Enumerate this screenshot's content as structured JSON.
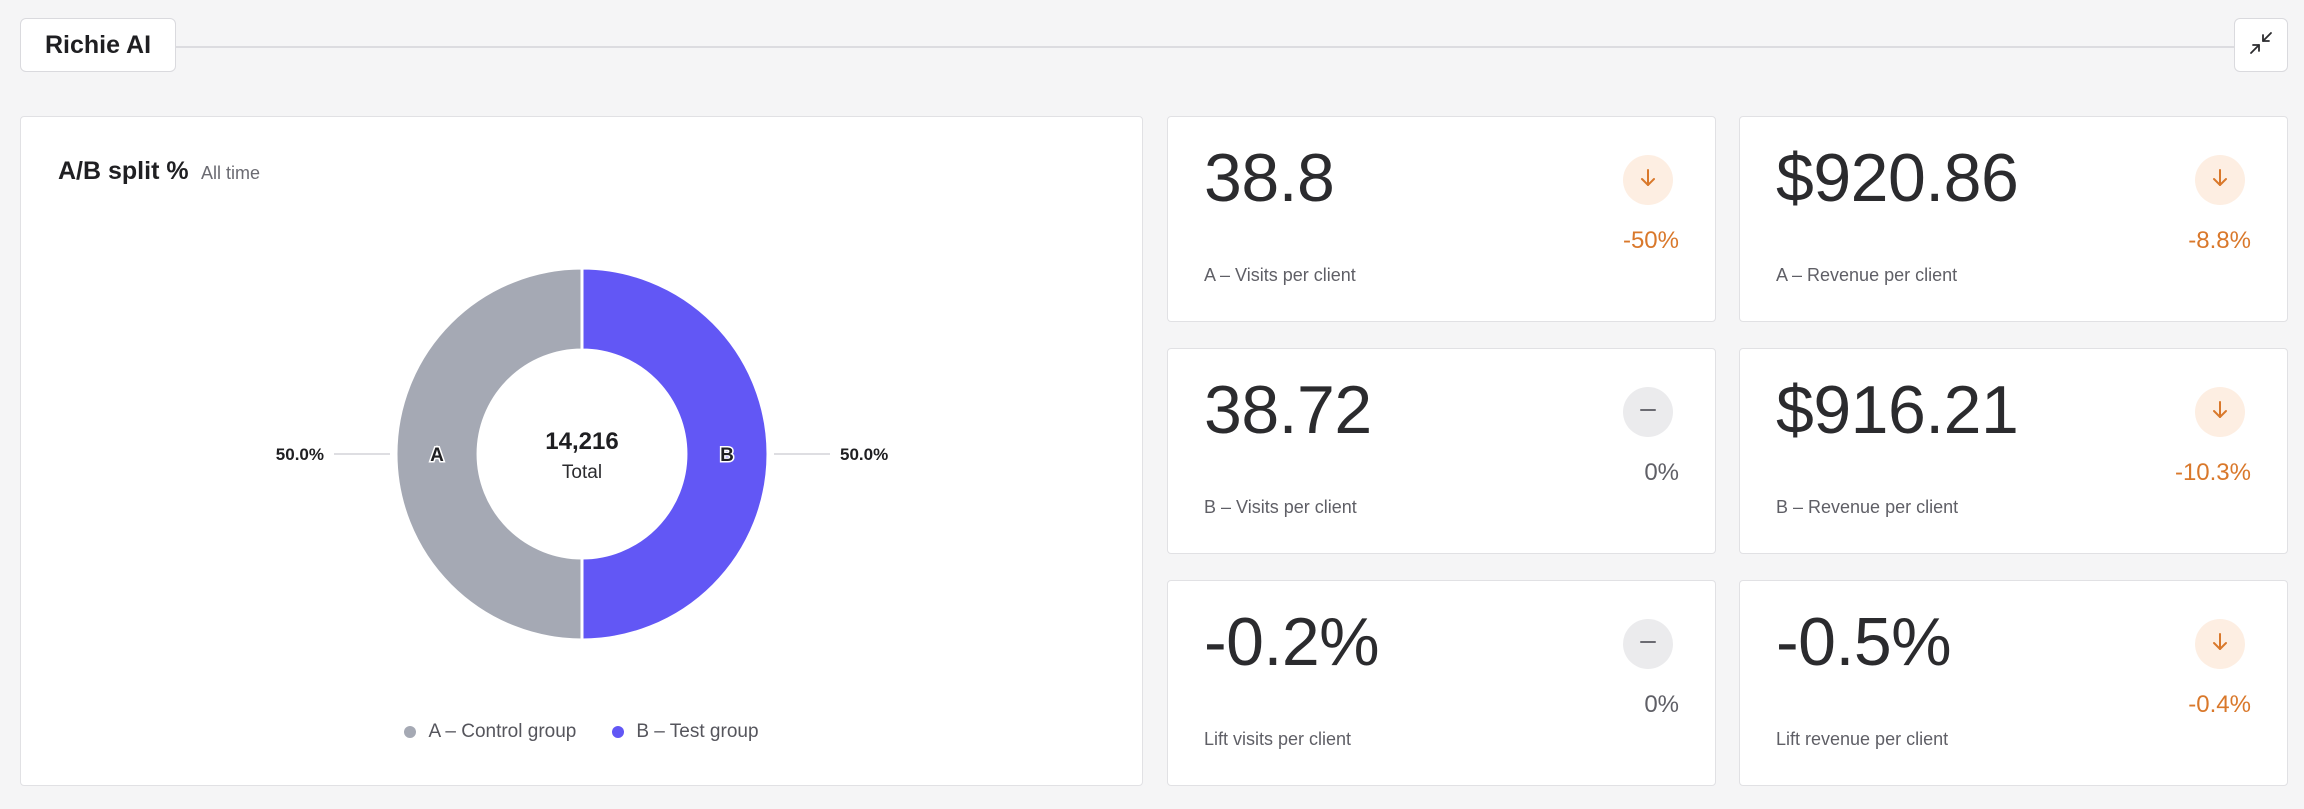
{
  "app": {
    "title": "Richie AI"
  },
  "chart_card": {
    "title": "A/B split %",
    "range": "All time"
  },
  "chart_data": {
    "type": "pie",
    "title": "A/B split %",
    "center_value": "14,216",
    "center_label": "Total",
    "total": 14216,
    "slices": [
      {
        "label": "A",
        "legend": "A – Control group",
        "value": 50.0,
        "display": "50.0%",
        "color": "#a5a9b4"
      },
      {
        "label": "B",
        "legend": "B – Test group",
        "value": 50.0,
        "display": "50.0%",
        "color": "#6257f5"
      }
    ],
    "legend_placement": "bottom"
  },
  "metrics": [
    {
      "value": "38.8",
      "label": "A – Visits per client",
      "change": "-50%",
      "trend": "down"
    },
    {
      "value": "$920.86",
      "label": "A – Revenue per client",
      "change": "-8.8%",
      "trend": "down"
    },
    {
      "value": "38.72",
      "label": "B – Visits per client",
      "change": "0%",
      "trend": "flat"
    },
    {
      "value": "$916.21",
      "label": "B – Revenue per client",
      "change": "-10.3%",
      "trend": "down"
    },
    {
      "value": "-0.2%",
      "label": "Lift visits per client",
      "change": "0%",
      "trend": "flat"
    },
    {
      "value": "-0.5%",
      "label": "Lift revenue per client",
      "change": "-0.4%",
      "trend": "down"
    }
  ],
  "icons": {
    "collapse": "collapse-arrows-icon",
    "down": "arrow-down-icon",
    "flat": "dash-icon"
  },
  "colors": {
    "accent_down": "#d9782b",
    "badge_down_bg": "#fdeee2",
    "badge_flat_bg": "#ebebed",
    "control": "#a5a9b4",
    "test": "#6257f5"
  }
}
